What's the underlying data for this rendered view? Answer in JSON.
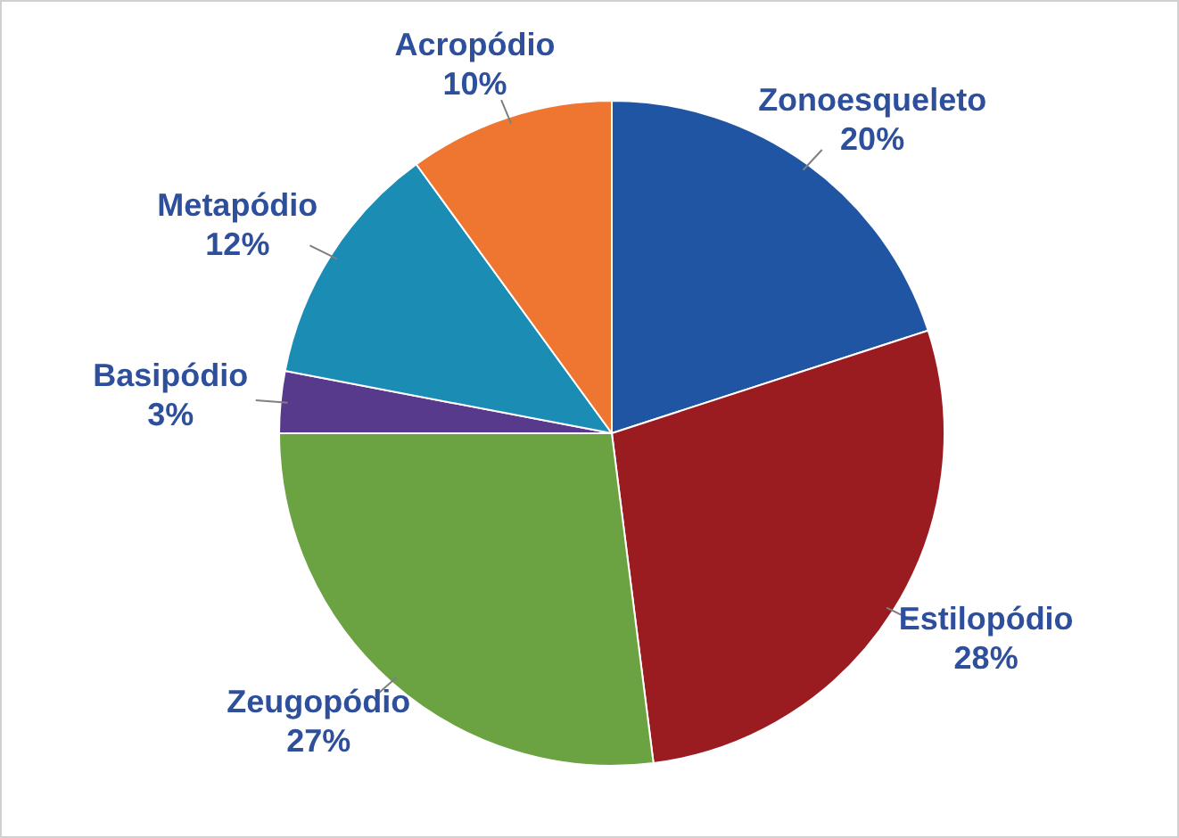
{
  "chart_data": {
    "type": "pie",
    "categories": [
      "Zonoesqueleto",
      "Estilopódio",
      "Zeugopódio",
      "Basipódio",
      "Metapódio",
      "Acropódio"
    ],
    "values": [
      20,
      28,
      27,
      3,
      12,
      10
    ],
    "colors": [
      "#1f55a2",
      "#9a1c20",
      "#6ba343",
      "#573a8c",
      "#1b8db4",
      "#ee7631"
    ],
    "value_labels": [
      "20%",
      "28%",
      "27%",
      "3%",
      "12%",
      "10%"
    ],
    "legend": false
  }
}
